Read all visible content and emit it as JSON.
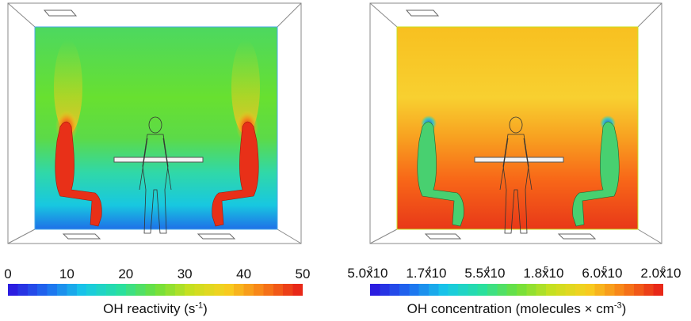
{
  "left": {
    "title": "OH reactivity (s",
    "title_sup": "-1",
    "title_end": ")",
    "ticks": [
      "0",
      "10",
      "20",
      "30",
      "40",
      "50"
    ],
    "colormap": [
      "#2b1de0",
      "#1e6ff0",
      "#18c8e8",
      "#28e0a0",
      "#6ee03c",
      "#c8e020",
      "#f8d020",
      "#f88018",
      "#e82818"
    ]
  },
  "right": {
    "title": "OH concentration (molecules × cm",
    "title_sup": "-3",
    "title_end": ")",
    "ticks": [
      {
        "m": "5.0x10",
        "e": "3"
      },
      {
        "m": "1.7x10",
        "e": "4"
      },
      {
        "m": "5.5x10",
        "e": "4"
      },
      {
        "m": "1.8x10",
        "e": "5"
      },
      {
        "m": "6.0x10",
        "e": "5"
      },
      {
        "m": "2.0x10",
        "e": "6"
      }
    ],
    "colormap": [
      "#2b1de0",
      "#1e6ff0",
      "#18c8e8",
      "#28e0a0",
      "#6ee03c",
      "#c8e020",
      "#f8d020",
      "#f88018",
      "#e82818"
    ]
  }
}
